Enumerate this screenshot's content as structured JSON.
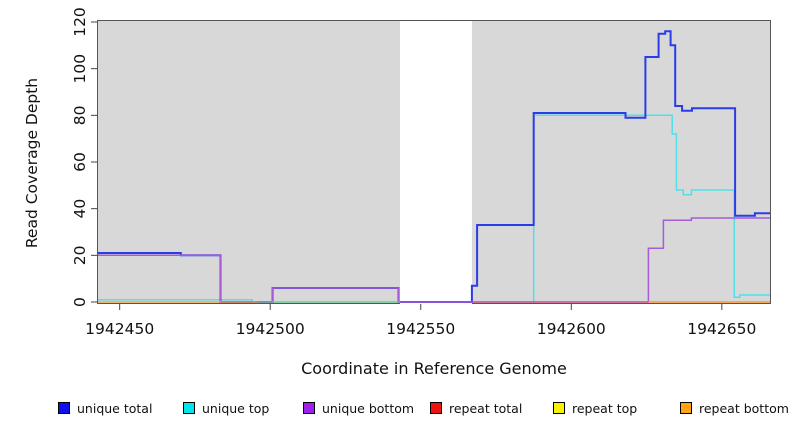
{
  "chart_data": {
    "type": "line",
    "title": "",
    "xlabel": "Coordinate in Reference Genome",
    "ylabel": "Read Coverage Depth",
    "xlim": [
      1942442.8,
      1942666.0
    ],
    "ylim": [
      0,
      120
    ],
    "x_ticks": [
      1942450,
      1942500,
      1942550,
      1942600,
      1942650
    ],
    "y_ticks": [
      0,
      20,
      40,
      60,
      80,
      100,
      120
    ],
    "grid": false,
    "plot_bg": "#d8d8d8",
    "gap_region": {
      "from": 1942543.1,
      "to": 1942567.0,
      "fill": "#ffffff"
    },
    "series": [
      {
        "name": "unique top",
        "color": "#4ee1ea",
        "width": 1.5,
        "segments": [
          [
            [
              1942442.8,
              1
            ],
            [
              1942494.0,
              0
            ],
            [
              1942587.5,
              80
            ],
            [
              1942633.5,
              72
            ],
            [
              1942634.9,
              48
            ],
            [
              1942637.2,
              46
            ],
            [
              1942639.9,
              48
            ],
            [
              1942654.1,
              2
            ],
            [
              1942656.0,
              3
            ],
            [
              1942666.0,
              3
            ]
          ]
        ]
      },
      {
        "name": "unique total",
        "color": "#2a3ce8",
        "width": 2,
        "segments": [
          [
            [
              1942442.8,
              21
            ],
            [
              1942470.3,
              20
            ],
            [
              1942483.5,
              0
            ],
            [
              1942500.8,
              6
            ],
            [
              1942542.6,
              0
            ],
            [
              1942567.0,
              7
            ],
            [
              1942568.7,
              33
            ],
            [
              1942587.5,
              81
            ],
            [
              1942618.0,
              79
            ],
            [
              1942624.6,
              105
            ],
            [
              1942629.0,
              115
            ],
            [
              1942631.2,
              116
            ],
            [
              1942633.0,
              110
            ],
            [
              1942634.5,
              84
            ],
            [
              1942636.8,
              82
            ],
            [
              1942640.1,
              83
            ],
            [
              1942654.4,
              37
            ],
            [
              1942661.0,
              38
            ],
            [
              1942666.0,
              38
            ]
          ]
        ]
      },
      {
        "name": "unique bottom",
        "color": "#a55cd6",
        "width": 1.5,
        "segments": [
          [
            [
              1942442.8,
              20
            ],
            [
              1942483.5,
              0
            ],
            [
              1942500.8,
              6
            ],
            [
              1942542.6,
              0
            ],
            [
              1942625.6,
              23
            ],
            [
              1942630.6,
              35
            ],
            [
              1942639.9,
              36
            ],
            [
              1942666.0,
              36
            ]
          ]
        ]
      },
      {
        "name": "repeat total",
        "color": "#e05575",
        "width": 1.3,
        "segments": [
          [
            [
              1942567.0,
              0
            ],
            [
              1942666.0,
              0
            ]
          ]
        ]
      },
      {
        "name": "repeat top",
        "color": "#7dc87f",
        "width": 1.3,
        "segments": [
          [
            [
              1942494.0,
              0
            ],
            [
              1942543.1,
              0
            ]
          ]
        ]
      },
      {
        "name": "repeat bottom",
        "color": "#ff9e2c",
        "width": 1.3,
        "segments": [
          [
            [
              1942442.8,
              0
            ],
            [
              1942495.7,
              0
            ]
          ],
          [
            [
              1942625.6,
              0
            ],
            [
              1942666.0,
              0
            ]
          ]
        ]
      }
    ]
  },
  "legend": {
    "items": [
      {
        "label": "unique total",
        "color": "#1111ee"
      },
      {
        "label": "unique top",
        "color": "#00e5ee"
      },
      {
        "label": "unique bottom",
        "color": "#a020f0"
      },
      {
        "label": "repeat total",
        "color": "#ee1111"
      },
      {
        "label": "repeat top",
        "color": "#f6f200"
      },
      {
        "label": "repeat bottom",
        "color": "#ffa312"
      }
    ]
  }
}
